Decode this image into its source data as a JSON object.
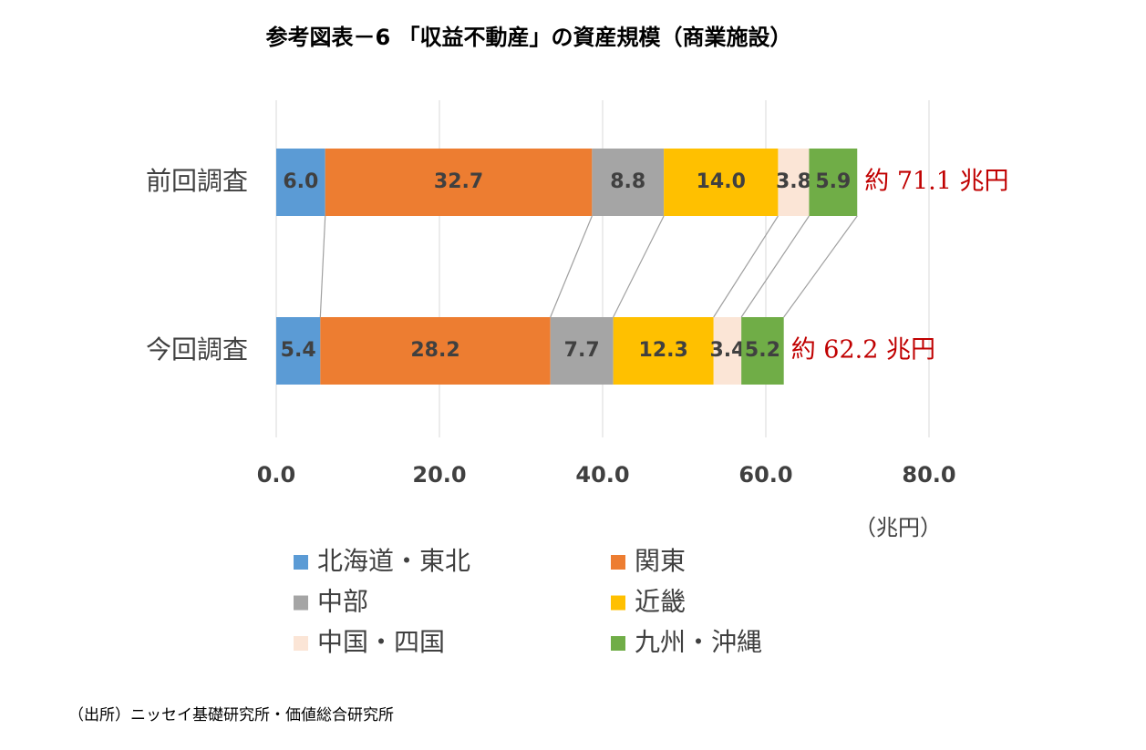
{
  "chart_data": {
    "type": "stacked-bar-horizontal",
    "title": "参考図表－6 「収益不動産」の資産規模（商業施設）",
    "categories": [
      "前回調査",
      "今回調査"
    ],
    "series": [
      {
        "name": "北海道・東北",
        "color": "#5b9bd5",
        "values": [
          6.0,
          5.4
        ],
        "value_labels": [
          "6.0",
          "5.4"
        ]
      },
      {
        "name": "関東",
        "color": "#ed7d31",
        "values": [
          32.7,
          28.2
        ],
        "value_labels": [
          "32.7",
          "28.2"
        ]
      },
      {
        "name": "中部",
        "color": "#a5a5a5",
        "values": [
          8.8,
          7.7
        ],
        "value_labels": [
          "8.8",
          "7.7"
        ]
      },
      {
        "name": "近畿",
        "color": "#ffc000",
        "values": [
          14.0,
          12.3
        ],
        "value_labels": [
          "14.0",
          "12.3"
        ]
      },
      {
        "name": "中国・四国",
        "color": "#fbe5d6",
        "values": [
          3.8,
          3.4
        ],
        "value_labels": [
          "3.8",
          "3.4"
        ]
      },
      {
        "name": "九州・沖縄",
        "color": "#70ad47",
        "values": [
          5.9,
          5.2
        ],
        "value_labels": [
          "5.9",
          "5.2"
        ]
      }
    ],
    "annotations": [
      "約 71.1 兆円",
      "約 62.2 兆円"
    ],
    "xlim": [
      0,
      80
    ],
    "xticks": [
      {
        "value": 0,
        "label": "0.0"
      },
      {
        "value": 20,
        "label": "20.0"
      },
      {
        "value": 40,
        "label": "40.0"
      },
      {
        "value": 60,
        "label": "60.0"
      },
      {
        "value": 80,
        "label": "80.0"
      }
    ],
    "x_unit": "（兆円）",
    "grid": true,
    "source": "（出所）ニッセイ基礎研究所・価値総合研究所"
  }
}
